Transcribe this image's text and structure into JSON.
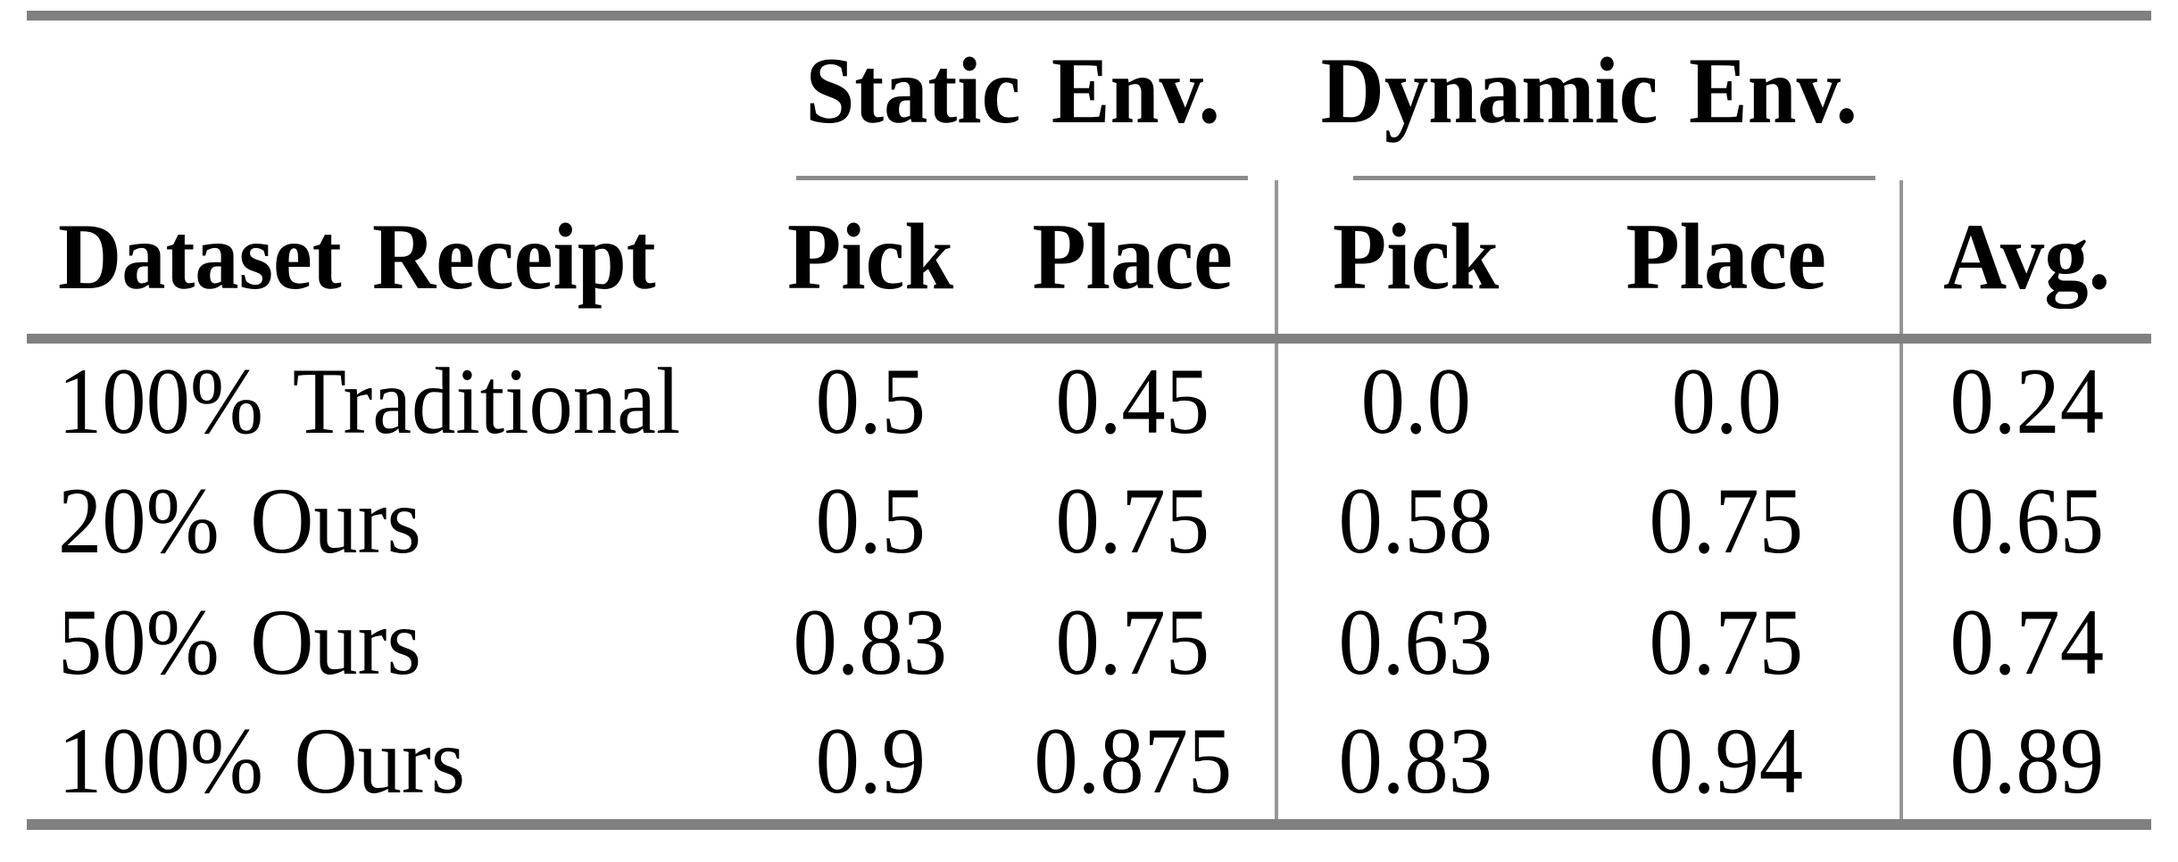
{
  "table": {
    "group_headers": [
      {
        "label": "Static Env."
      },
      {
        "label": "Dynamic Env."
      }
    ],
    "column_headers": {
      "dataset": "Dataset Receipt",
      "static_pick": "Pick",
      "static_place": "Place",
      "dynamic_pick": "Pick",
      "dynamic_place": "Place",
      "avg": "Avg."
    },
    "rows": [
      {
        "label": "100% Traditional",
        "static_pick": "0.5",
        "static_place": "0.45",
        "dynamic_pick": "0.0",
        "dynamic_place": "0.0",
        "avg": "0.24"
      },
      {
        "label": "20% Ours",
        "static_pick": "0.5",
        "static_place": "0.75",
        "dynamic_pick": "0.58",
        "dynamic_place": "0.75",
        "avg": "0.65"
      },
      {
        "label": "50% Ours",
        "static_pick": "0.83",
        "static_place": "0.75",
        "dynamic_pick": "0.63",
        "dynamic_place": "0.75",
        "avg": "0.74"
      },
      {
        "label": "100% Ours",
        "static_pick": "0.9",
        "static_place": "0.875",
        "dynamic_pick": "0.83",
        "dynamic_place": "0.94",
        "avg": "0.89"
      }
    ]
  },
  "colors": {
    "text": "#000000",
    "background": "#ffffff",
    "thick_rule": "#808080",
    "cmidrule": "#8c8c8c",
    "vertical_rule": "#969696"
  },
  "chart_data": {
    "type": "table",
    "group_columns": {
      "Static Env.": [
        "Pick",
        "Place"
      ],
      "Dynamic Env.": [
        "Pick",
        "Place"
      ]
    },
    "columns": [
      "Dataset Receipt",
      "Static Env. Pick",
      "Static Env. Place",
      "Dynamic Env. Pick",
      "Dynamic Env. Place",
      "Avg."
    ],
    "rows": [
      [
        "100% Traditional",
        0.5,
        0.45,
        0.0,
        0.0,
        0.24
      ],
      [
        "20% Ours",
        0.5,
        0.75,
        0.58,
        0.75,
        0.65
      ],
      [
        "50% Ours",
        0.83,
        0.75,
        0.63,
        0.75,
        0.74
      ],
      [
        "100% Ours",
        0.9,
        0.875,
        0.83,
        0.94,
        0.89
      ]
    ]
  }
}
